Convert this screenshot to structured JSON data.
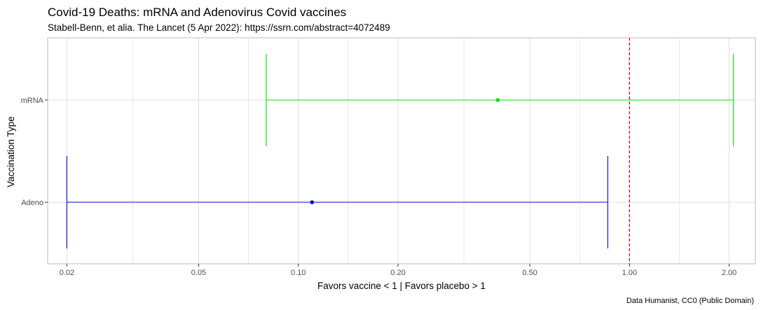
{
  "chart_data": {
    "type": "errorbar",
    "title": "Covid-19 Deaths: mRNA and Adenovirus Covid vaccines",
    "subtitle": "Stabell-Benn, et alia. The Lancet (5 Apr 2022): https://ssrn.com/abstract=4072489",
    "xlabel": "Favors vaccine < 1  | Favors placebo > 1",
    "ylabel": "Vaccination Type",
    "caption": "Data Humanist, CC0 (Public Domain)",
    "x_scale": "log",
    "xlim": [
      0.0175,
      2.4
    ],
    "x_ticks": [
      0.02,
      0.05,
      0.1,
      0.2,
      0.5,
      1.0,
      2.0
    ],
    "x_tick_labels": [
      "0.02",
      "0.05",
      "0.10",
      "0.20",
      "0.50",
      "1.00",
      "2.00"
    ],
    "categories": [
      "mRNA",
      "Adeno"
    ],
    "series": [
      {
        "category": "mRNA",
        "estimate": 0.4,
        "lower": 0.08,
        "upper": 2.06,
        "color": "#00e000"
      },
      {
        "category": "Adeno",
        "estimate": 0.11,
        "lower": 0.02,
        "upper": 0.86,
        "color": "#0000dd"
      }
    ],
    "reference_line": {
      "x": 1.0,
      "color": "#cc0000",
      "style": "dashed"
    },
    "grid": true,
    "background": "#ffffff",
    "grid_color": "#dedede",
    "panel_border_color": "#bdbdbd"
  }
}
